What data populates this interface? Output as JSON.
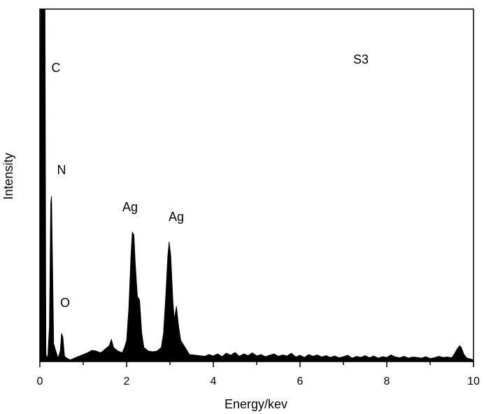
{
  "chart_data": {
    "type": "area",
    "title": "",
    "xlabel": "Energy/kev",
    "ylabel": "Intensity",
    "xlim": [
      0,
      10
    ],
    "ylim": [
      0,
      100
    ],
    "x_ticks": [
      "0",
      "2",
      "4",
      "6",
      "8",
      "10"
    ],
    "x_tick_values": [
      0,
      2,
      4,
      6,
      8,
      10
    ],
    "x_minor_tick_values": [
      1,
      3,
      5,
      7,
      9
    ],
    "y_ticks_shown": false,
    "grid": false,
    "sample_label": "S3",
    "peak_labels": [
      {
        "text": "C",
        "energy": 0.1
      },
      {
        "text": "N",
        "energy": 0.27
      },
      {
        "text": "O",
        "energy": 0.52
      },
      {
        "text": "Ag",
        "energy": 2.13
      },
      {
        "text": "Ag",
        "energy": 2.98
      }
    ],
    "series": [
      {
        "color": "#000000",
        "x": [
          0,
          0.02,
          0.12,
          0.14,
          0.18,
          0.22,
          0.25,
          0.27,
          0.29,
          0.32,
          0.38,
          0.42,
          0.47,
          0.5,
          0.53,
          0.57,
          0.62,
          0.7,
          0.8,
          0.9,
          1.0,
          1.1,
          1.2,
          1.3,
          1.4,
          1.5,
          1.6,
          1.65,
          1.7,
          1.8,
          1.9,
          1.95,
          2.0,
          2.05,
          2.1,
          2.13,
          2.17,
          2.2,
          2.25,
          2.3,
          2.35,
          2.4,
          2.5,
          2.6,
          2.7,
          2.8,
          2.85,
          2.9,
          2.95,
          2.98,
          3.02,
          3.07,
          3.1,
          3.15,
          3.2,
          3.25,
          3.3,
          3.35,
          3.45,
          3.6,
          3.8,
          3.9,
          4.0,
          4.1,
          4.2,
          4.3,
          4.4,
          4.5,
          4.6,
          4.7,
          4.8,
          4.9,
          5.0,
          5.1,
          5.2,
          5.3,
          5.4,
          5.5,
          5.6,
          5.7,
          5.8,
          5.9,
          6.0,
          6.1,
          6.2,
          6.3,
          6.4,
          6.5,
          6.6,
          6.7,
          6.8,
          6.9,
          7.0,
          7.1,
          7.2,
          7.3,
          7.4,
          7.5,
          7.6,
          7.7,
          7.8,
          7.9,
          8.0,
          8.1,
          8.2,
          8.3,
          8.4,
          8.5,
          8.6,
          8.7,
          8.8,
          8.9,
          9.0,
          9.1,
          9.2,
          9.3,
          9.4,
          9.5,
          9.55,
          9.62,
          9.68,
          9.72,
          9.78,
          9.85,
          9.92,
          10.0
        ],
        "y": [
          0,
          100,
          100,
          2,
          1,
          10,
          45,
          47,
          30,
          5,
          2.5,
          1,
          3,
          8,
          7,
          1.5,
          1,
          0.5,
          1,
          1.5,
          2,
          2.5,
          3.2,
          3,
          2.5,
          3.5,
          4.5,
          6.3,
          4,
          3,
          2.5,
          4,
          6,
          15,
          30,
          36.7,
          36,
          28,
          18.5,
          17.5,
          8,
          4,
          3,
          2.8,
          3,
          4,
          8,
          18,
          30,
          34,
          30,
          17,
          12,
          15.7,
          10,
          6,
          5,
          4,
          2,
          1.8,
          1.5,
          2,
          1.6,
          2.2,
          1.4,
          2.4,
          1.8,
          2.6,
          1.5,
          2.2,
          1.7,
          2.5,
          1.6,
          2,
          1.4,
          1.8,
          2.2,
          1.5,
          1.9,
          1.6,
          2.4,
          1.3,
          1.8,
          1.2,
          2,
          1.5,
          1.9,
          1.3,
          1.7,
          1.2,
          1.6,
          1.1,
          1.4,
          1.8,
          1.0,
          1.5,
          1.2,
          1.7,
          1.1,
          1.6,
          1.0,
          1.4,
          1.2,
          1.9,
          1.3,
          1.1,
          1.5,
          1.0,
          1.3,
          1.2,
          1.0,
          1.4,
          0.9,
          1.1,
          1.5,
          1.2,
          1.3,
          1.1,
          2,
          3.5,
          4.5,
          4,
          2,
          1,
          0.8,
          0.5
        ]
      }
    ]
  }
}
